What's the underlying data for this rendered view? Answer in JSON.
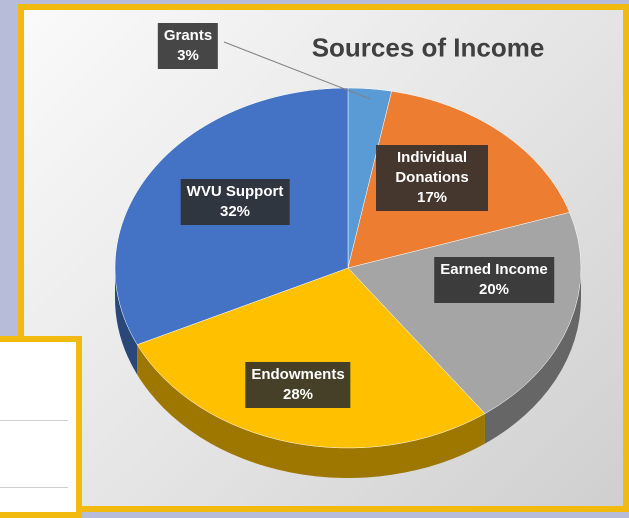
{
  "chart_data": {
    "type": "pie",
    "title": "Sources of Income",
    "categories": [
      "Grants",
      "Individual Donations",
      "Earned Income",
      "Endowments",
      "WVU Support"
    ],
    "values": [
      3,
      17,
      20,
      28,
      32
    ],
    "value_labels": [
      "3%",
      "17%",
      "20%",
      "28%",
      "32%"
    ],
    "colors": [
      "#5b9bd5",
      "#ed7d31",
      "#a5a5a5",
      "#ffc000",
      "#4472c4"
    ]
  }
}
